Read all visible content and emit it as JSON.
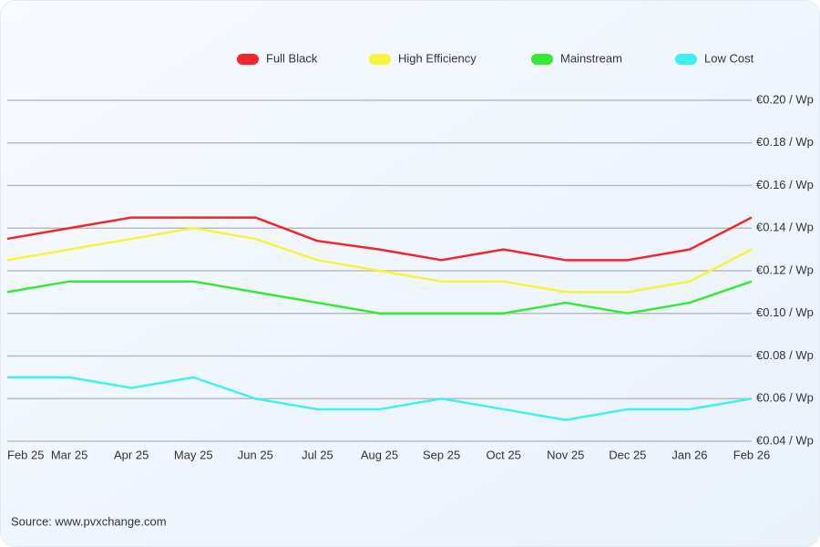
{
  "chart_data": {
    "type": "line",
    "categories": [
      "Feb 25",
      "Mar 25",
      "Apr 25",
      "May 25",
      "Jun 25",
      "Jul 25",
      "Aug 25",
      "Sep 25",
      "Oct 25",
      "Nov 25",
      "Dec 25",
      "Jan 26",
      "Feb 26"
    ],
    "series": [
      {
        "name": "Full Black",
        "color": "#f0262a",
        "values": [
          0.135,
          0.14,
          0.145,
          0.145,
          0.145,
          0.134,
          0.13,
          0.125,
          0.13,
          0.125,
          0.125,
          0.13,
          0.145
        ]
      },
      {
        "name": "High Efficiency",
        "color": "#f6f43c",
        "values": [
          0.125,
          0.13,
          0.135,
          0.14,
          0.135,
          0.125,
          0.12,
          0.115,
          0.115,
          0.11,
          0.11,
          0.115,
          0.13
        ]
      },
      {
        "name": "Mainstream",
        "color": "#35ea35",
        "values": [
          0.11,
          0.115,
          0.115,
          0.115,
          0.11,
          0.105,
          0.1,
          0.1,
          0.1,
          0.105,
          0.1,
          0.105,
          0.115
        ]
      },
      {
        "name": "Low Cost",
        "color": "#3ef0f0",
        "values": [
          0.07,
          0.07,
          0.065,
          0.07,
          0.06,
          0.055,
          0.055,
          0.06,
          0.055,
          0.05,
          0.055,
          0.055,
          0.06
        ]
      }
    ],
    "ylim": [
      0.04,
      0.2
    ],
    "yticks": [
      {
        "value": 0.04,
        "label": "€0.04 / Wp"
      },
      {
        "value": 0.06,
        "label": "€0.06 / Wp"
      },
      {
        "value": 0.08,
        "label": "€0.08 / Wp"
      },
      {
        "value": 0.1,
        "label": "€0.10 / Wp"
      },
      {
        "value": 0.12,
        "label": "€0.12 / Wp"
      },
      {
        "value": 0.14,
        "label": "€0.14 / Wp"
      },
      {
        "value": 0.16,
        "label": "€0.16 / Wp"
      },
      {
        "value": 0.18,
        "label": "€0.18 / Wp"
      },
      {
        "value": 0.2,
        "label": "€0.20 / Wp"
      }
    ],
    "grid": true,
    "legend": "top",
    "source": "Source: www.pvxchange.com"
  }
}
